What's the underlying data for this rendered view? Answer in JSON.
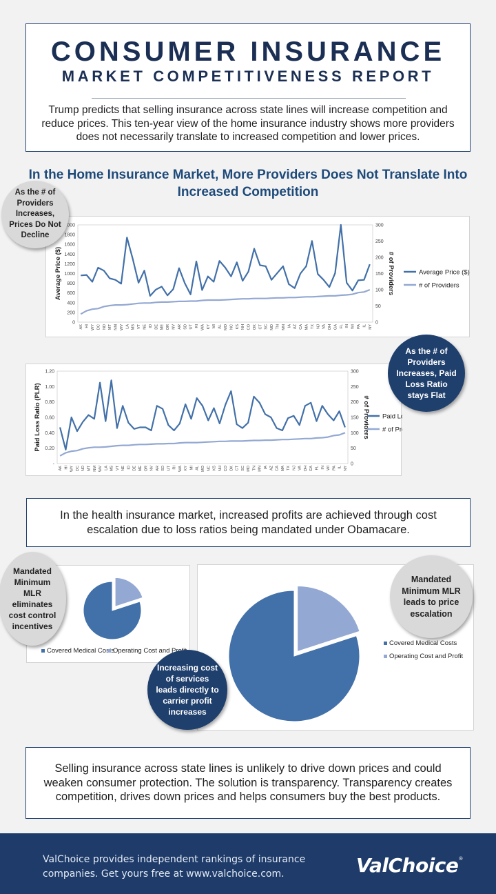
{
  "header": {
    "title": "CONSUMER INSURANCE",
    "subtitle": "MARKET COMPETITIVENESS REPORT",
    "intro": "Trump predicts that selling insurance across state lines will increase competition and reduce prices. This ten-year view of the home insurance industry shows more providers does not necessarily translate to increased competition and lower prices."
  },
  "section_title": "In the Home Insurance Market, More Providers Does Not Translate Into Increased Competition",
  "bubbles": {
    "prices": "As the # of Providers Increases, Prices Do Not Decline",
    "plr": "As the # of Providers Increases, Paid Loss Ratio stays Flat",
    "mlr_incentives": "Mandated Minimum MLR eliminates cost control incentives",
    "mlr_escalation": "Mandated Minimum MLR leads to price escalation",
    "profit": "Increasing cost of services leads directly to carrier profit increases"
  },
  "health_text": "In the health insurance market, increased profits are achieved through cost escalation due to loss ratios being mandated under Obamacare.",
  "conclusion_text": "Selling insurance across state lines is unlikely to drive down prices and could weaken consumer protection. The solution is transparency. Transparency creates competition, drives down prices and helps consumers buy the best products.",
  "footer": {
    "text": "ValChoice provides independent rankings of insurance companies. Get yours free at www.valchoice.com.",
    "logo": "ValChoice",
    "logo_mark": "®"
  },
  "colors": {
    "navy": "#1e3f6e",
    "series_dark": "#4270a8",
    "series_light": "#93a8d2"
  },
  "chart_data": [
    {
      "type": "line",
      "title": "",
      "ylabel": "Average Price ($)",
      "y2label": "# of Providers",
      "ylim": [
        0,
        2000
      ],
      "y2lim": [
        0,
        300
      ],
      "yticks": [
        "0",
        "200",
        "400",
        "600",
        "800",
        "1000",
        "1200",
        "1400",
        "1600",
        "1800",
        "2000"
      ],
      "y2ticks": [
        "0",
        "50",
        "100",
        "150",
        "200",
        "250",
        "300"
      ],
      "legend_position": "right",
      "categories": [
        "AK",
        "HI",
        "WY",
        "DC",
        "ND",
        "MT",
        "NM",
        "WV",
        "LA",
        "MS",
        "VT",
        "NE",
        "ID",
        "DE",
        "ME",
        "OR",
        "NV",
        "AR",
        "SD",
        "UT",
        "RI",
        "WA",
        "KY",
        "MI",
        "AL",
        "MO",
        "NC",
        "KS",
        "NH",
        "CO",
        "OK",
        "CT",
        "SC",
        "MD",
        "TN",
        "MN",
        "IA",
        "AZ",
        "CA",
        "MA",
        "TX",
        "NJ",
        "VA",
        "OH",
        "GA",
        "FL",
        "IN",
        "WI",
        "PA",
        "IL",
        "NY"
      ],
      "series": [
        {
          "name": "Average Price ($)",
          "axis": "left",
          "values": [
            960,
            970,
            830,
            1120,
            1060,
            900,
            870,
            790,
            1740,
            1300,
            810,
            1060,
            540,
            670,
            730,
            550,
            680,
            1110,
            800,
            570,
            1250,
            660,
            940,
            830,
            1260,
            1120,
            940,
            1230,
            850,
            1040,
            1510,
            1170,
            1150,
            870,
            1010,
            1150,
            780,
            700,
            1000,
            1150,
            1670,
            990,
            870,
            720,
            1010,
            2000,
            810,
            650,
            860,
            870,
            1190
          ]
        },
        {
          "name": "# of Providers",
          "axis": "right",
          "values": [
            25,
            35,
            40,
            42,
            48,
            51,
            53,
            53,
            54,
            56,
            58,
            59,
            59,
            61,
            62,
            62,
            63,
            64,
            64,
            65,
            65,
            67,
            68,
            68,
            68,
            69,
            70,
            71,
            72,
            72,
            73,
            73,
            73,
            74,
            75,
            75,
            76,
            76,
            77,
            78,
            78,
            79,
            80,
            81,
            81,
            83,
            84,
            86,
            91,
            93,
            100
          ]
        }
      ]
    },
    {
      "type": "line",
      "title": "",
      "ylabel": "Paid Loss Ratio (PLR)",
      "y2label": "# of Providers",
      "ylim": [
        0,
        1.2
      ],
      "y2lim": [
        0,
        300
      ],
      "yticks": [
        "-",
        "0.20",
        "0.40",
        "0.60",
        "0.80",
        "1.00",
        "1.20"
      ],
      "y2ticks": [
        "0",
        "50",
        "100",
        "150",
        "200",
        "250",
        "300"
      ],
      "legend_position": "right",
      "categories": [
        "AK",
        "HI",
        "WY",
        "DC",
        "ND",
        "MT",
        "NM",
        "WV",
        "LA",
        "MS",
        "VT",
        "NE",
        "ID",
        "DE",
        "ME",
        "OR",
        "NV",
        "AR",
        "SD",
        "UT",
        "RI",
        "WA",
        "KY",
        "MI",
        "AL",
        "MO",
        "NC",
        "KS",
        "NH",
        "CO",
        "OK",
        "CT",
        "SC",
        "MD",
        "TN",
        "MN",
        "IA",
        "AZ",
        "CA",
        "MA",
        "TX",
        "NJ",
        "VA",
        "OH",
        "GA",
        "FL",
        "IN",
        "WI",
        "PA",
        "IL",
        "NY"
      ],
      "series": [
        {
          "name": "Paid Loss Ratio (PLR)",
          "axis": "left",
          "values": [
            0.47,
            0.18,
            0.6,
            0.42,
            0.54,
            0.63,
            0.58,
            1.05,
            0.55,
            1.08,
            0.46,
            0.75,
            0.53,
            0.45,
            0.47,
            0.47,
            0.43,
            0.75,
            0.71,
            0.5,
            0.43,
            0.52,
            0.77,
            0.58,
            0.85,
            0.75,
            0.56,
            0.72,
            0.52,
            0.76,
            0.94,
            0.51,
            0.46,
            0.53,
            0.87,
            0.79,
            0.64,
            0.6,
            0.46,
            0.43,
            0.59,
            0.62,
            0.5,
            0.75,
            0.79,
            0.55,
            0.75,
            0.64,
            0.56,
            0.68,
            0.47
          ]
        },
        {
          "name": "# of Providers",
          "axis": "right",
          "values": [
            25,
            35,
            40,
            42,
            48,
            51,
            53,
            53,
            54,
            56,
            58,
            59,
            59,
            61,
            62,
            62,
            63,
            64,
            64,
            65,
            65,
            67,
            68,
            68,
            68,
            69,
            70,
            71,
            72,
            72,
            73,
            73,
            73,
            74,
            75,
            75,
            76,
            76,
            77,
            78,
            78,
            79,
            80,
            81,
            81,
            83,
            84,
            86,
            91,
            93,
            100
          ]
        }
      ]
    },
    {
      "type": "pie",
      "labels": [
        "Covered Medical Costs",
        "Operating Cost and Profit"
      ],
      "values": [
        80,
        20
      ],
      "legend_position": "bottom"
    },
    {
      "type": "pie",
      "labels": [
        "Covered Medical Costs",
        "Operating Cost and Profit"
      ],
      "values": [
        80,
        20
      ],
      "legend_position": "right"
    }
  ]
}
